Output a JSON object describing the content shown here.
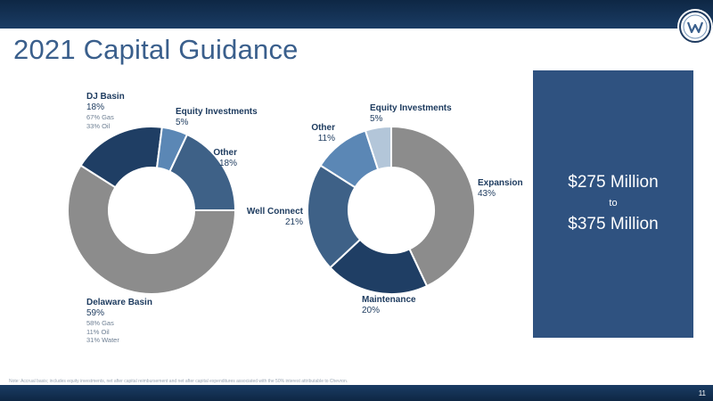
{
  "header": {
    "title": "2021 Capital Guidance",
    "logo_icon": "w-logo-icon",
    "brand_color": "#1a3c64"
  },
  "chart_data": [
    {
      "type": "pie",
      "style": "donut",
      "segments": [
        {
          "label": "Delaware Basin",
          "value": 59,
          "display": "59%",
          "details": [
            "58% Gas",
            "11% Oil",
            "31% Water"
          ],
          "color": "#8c8c8c"
        },
        {
          "label": "DJ Basin",
          "value": 18,
          "display": "18%",
          "details": [
            "67% Gas",
            "33% Oil"
          ],
          "color": "#1f3e64"
        },
        {
          "label": "Equity Investments",
          "value": 5,
          "display": "5%",
          "details": [],
          "color": "#5b87b5"
        },
        {
          "label": "Other",
          "value": 18,
          "display": "18%",
          "details": [],
          "color": "#3e6187"
        }
      ]
    },
    {
      "type": "pie",
      "style": "donut",
      "segments": [
        {
          "label": "Expansion",
          "value": 43,
          "display": "43%",
          "color": "#8c8c8c"
        },
        {
          "label": "Maintenance",
          "value": 20,
          "display": "20%",
          "color": "#1f3e64"
        },
        {
          "label": "Well Connect",
          "value": 21,
          "display": "21%",
          "color": "#3e6187"
        },
        {
          "label": "Other",
          "value": 11,
          "display": "11%",
          "color": "#5b87b5"
        },
        {
          "label": "Equity Investments",
          "value": 5,
          "display": "5%",
          "color": "#b3c6d9"
        }
      ]
    }
  ],
  "guidance": {
    "low": "$275 Million",
    "to": "to",
    "high": "$375 Million",
    "color": "#2f5280"
  },
  "footnote": "Note: Accrual basis; includes equity investments, net after capital reimbursement and net after capital expenditures associated with the 50% interest attributable to Chevron.",
  "page_number": "11"
}
